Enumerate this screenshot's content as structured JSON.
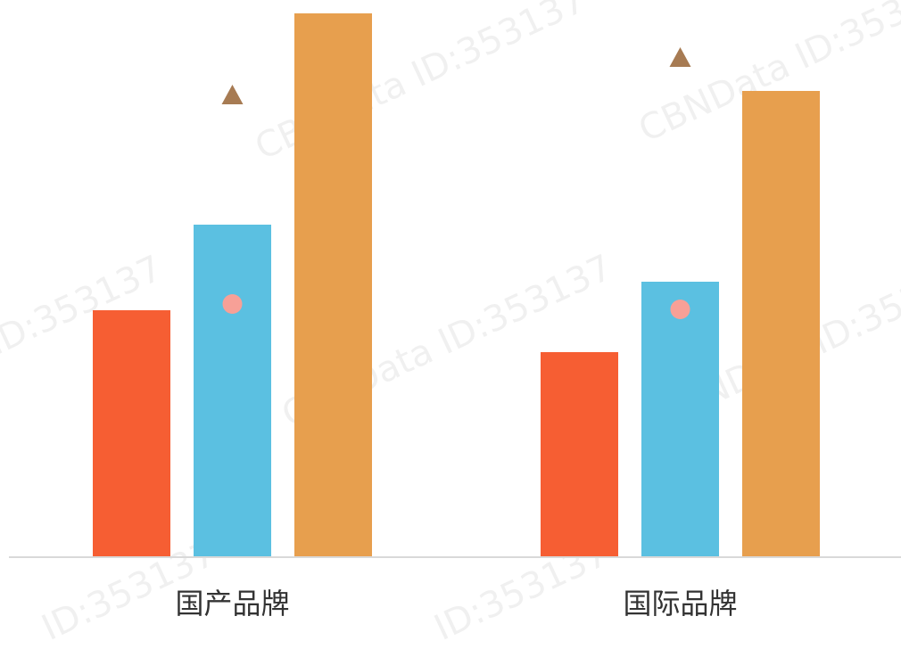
{
  "chart_data": {
    "type": "bar",
    "categories": [
      "国产品牌",
      "国际品牌"
    ],
    "series": [
      {
        "values": [
          277,
          230
        ],
        "color": "#f65e33",
        "kind": "bar"
      },
      {
        "values": [
          373,
          309
        ],
        "color": "#5bc0e1",
        "kind": "bar"
      },
      {
        "values": [
          610,
          523
        ],
        "color": "#e79f4e",
        "kind": "bar"
      }
    ],
    "markers": [
      {
        "shape": "circle",
        "values": [
          284,
          278
        ],
        "color": "#f7a097"
      },
      {
        "shape": "triangle",
        "values": [
          519,
          561
        ],
        "color": "#a77b53"
      }
    ],
    "ylim": [
      0,
      625
    ],
    "grid": false,
    "legend": "none"
  },
  "watermark": {
    "text_cbn": "CBNData",
    "text_id": "ID:353137"
  }
}
